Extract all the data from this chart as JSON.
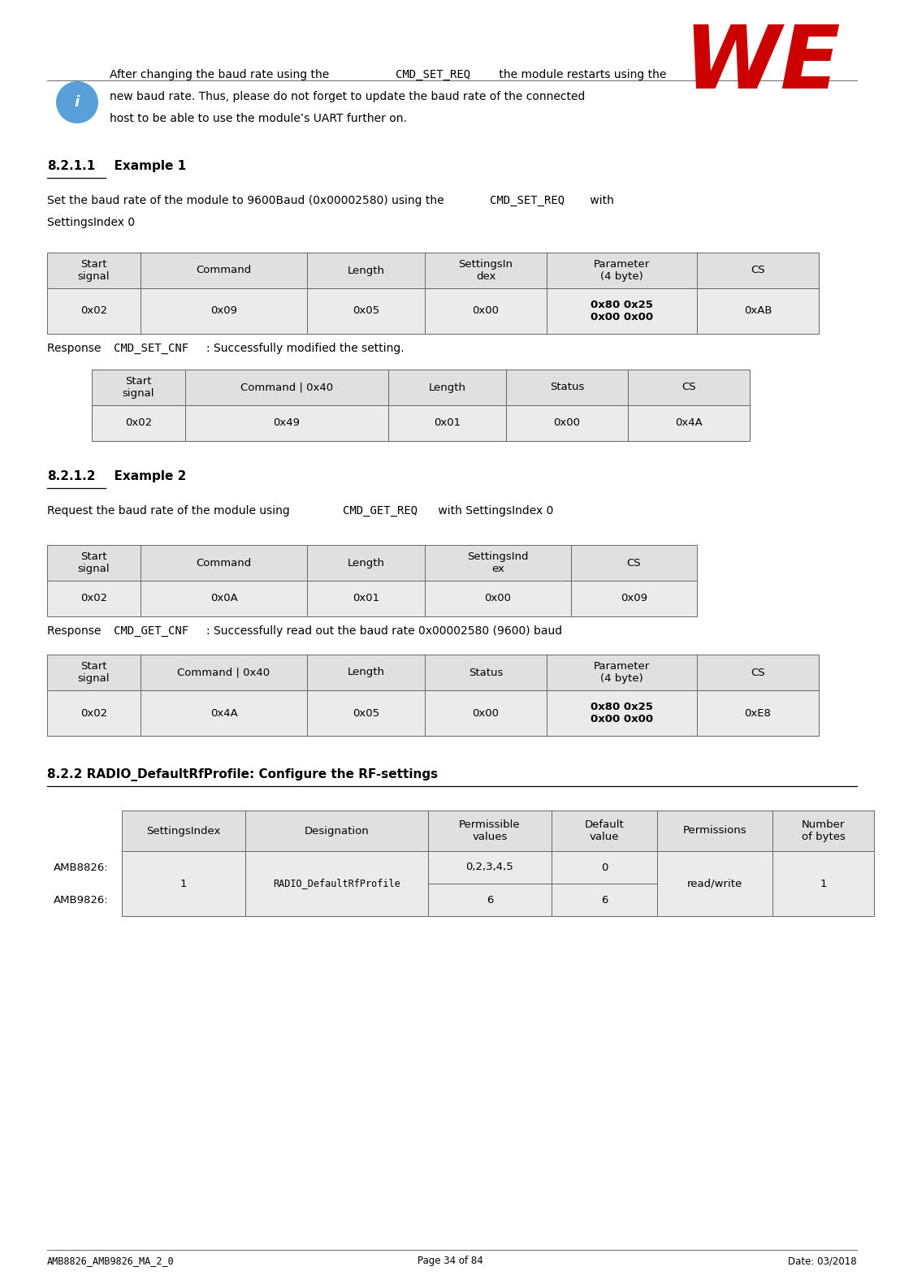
{
  "page_width": 11.08,
  "page_height": 15.81,
  "bg_color": "#ffffff",
  "footer_left": "AMB8826_AMB9826_MA_2_0",
  "footer_center": "Page 34 of 84",
  "footer_right": "Date: 03/2018",
  "header_gray": "#e0e0e0",
  "cell_gray": "#ebebeb",
  "border_color": "#666666",
  "text_color": "#000000",
  "table1_headers": [
    "Start\nsignal",
    "Command",
    "Length",
    "SettingsIn\ndex",
    "Parameter\n(4 byte)",
    "CS"
  ],
  "table1_data": [
    "0x02",
    "0x09",
    "0x05",
    "0x00",
    "0x80 0x25\n0x00 0x00",
    "0xAB"
  ],
  "table2_headers": [
    "Start\nsignal",
    "Command | 0x40",
    "Length",
    "Status",
    "CS"
  ],
  "table2_data": [
    "0x02",
    "0x49",
    "0x01",
    "0x00",
    "0x4A"
  ],
  "table3_headers": [
    "Start\nsignal",
    "Command",
    "Length",
    "SettingsInd\nex",
    "CS"
  ],
  "table3_data": [
    "0x02",
    "0x0A",
    "0x01",
    "0x00",
    "0x09"
  ],
  "table4_headers": [
    "Start\nsignal",
    "Command | 0x40",
    "Length",
    "Status",
    "Parameter\n(4 byte)",
    "CS"
  ],
  "table4_data": [
    "0x02",
    "0x4A",
    "0x05",
    "0x00",
    "0x80 0x25\n0x00 0x00",
    "0xE8"
  ],
  "table5_col_headers": [
    "",
    "SettingsIndex",
    "Designation",
    "Permissible\nvalues",
    "Default\nvalue",
    "Permissions",
    "Number\nof bytes"
  ],
  "section_822": "8.2.2 RADIO_DefaultRfProfile: Configure the RF-settings"
}
